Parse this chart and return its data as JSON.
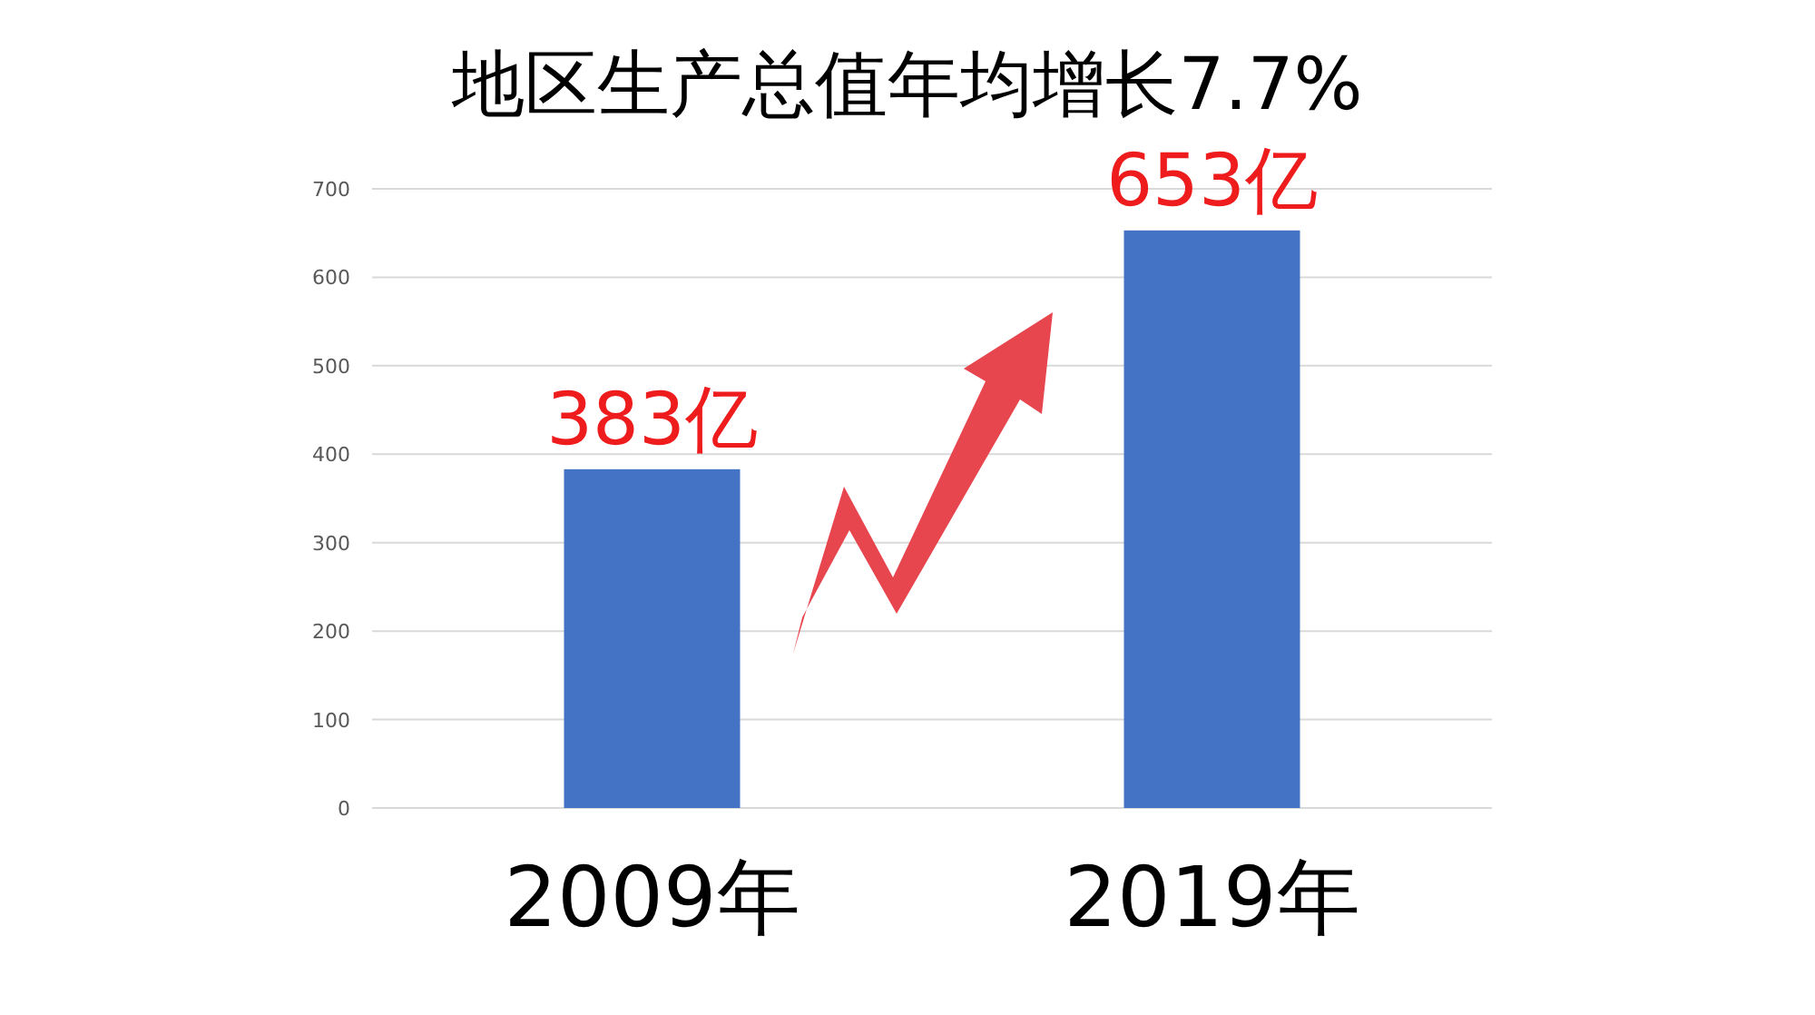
{
  "chart_data": {
    "type": "bar",
    "title": "地区生产总值年均增长7.7%",
    "categories": [
      "2009年",
      "2019年"
    ],
    "values": [
      383,
      653
    ],
    "value_labels": [
      "383亿",
      "653亿"
    ],
    "color": "#4472c4",
    "ylim": [
      0,
      700
    ],
    "yticks": [
      0,
      100,
      200,
      300,
      400,
      500,
      600,
      700
    ],
    "grid": "y"
  }
}
